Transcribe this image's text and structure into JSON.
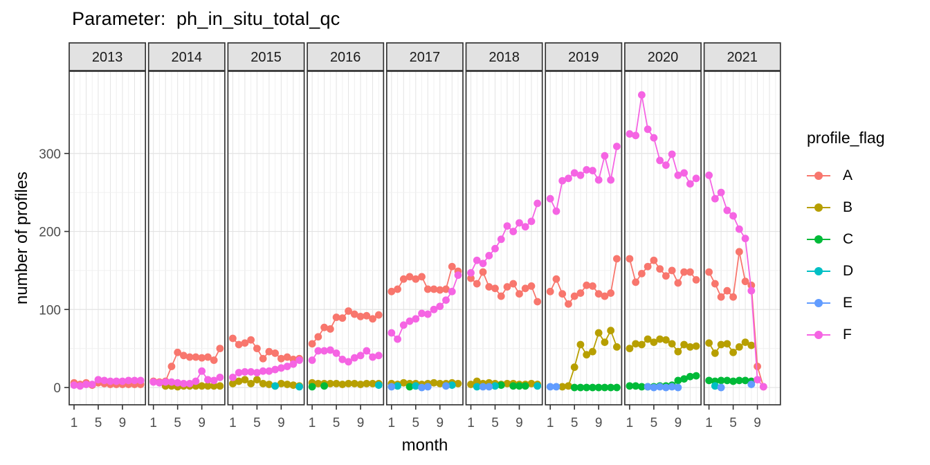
{
  "title": "Parameter:  ph_in_situ_total_qc",
  "axes": {
    "y_title": "number of profiles",
    "x_title": "month",
    "y_ticks": [
      0,
      100,
      200,
      300
    ],
    "x_ticks": [
      1,
      5,
      9
    ]
  },
  "legend": {
    "title": "profile_flag",
    "entries": [
      {
        "label": "A",
        "color": "#F8766D"
      },
      {
        "label": "B",
        "color": "#B79F00"
      },
      {
        "label": "C",
        "color": "#00BA38"
      },
      {
        "label": "D",
        "color": "#00BFC4"
      },
      {
        "label": "E",
        "color": "#619CFF"
      },
      {
        "label": "F",
        "color": "#F564E3"
      }
    ]
  },
  "chart_data": {
    "type": "line",
    "facet_by": "year",
    "x_unit": "month",
    "x_range": [
      1,
      12
    ],
    "ylim": [
      -22,
      404
    ],
    "grid": "on",
    "legend_position": "right",
    "series_order": [
      "A",
      "B",
      "C",
      "D",
      "E",
      "F"
    ],
    "series_colors": {
      "A": "#F8766D",
      "B": "#B79F00",
      "C": "#00BA38",
      "D": "#00BFC4",
      "E": "#619CFF",
      "F": "#F564E3"
    },
    "facets": [
      {
        "year": "2013",
        "series": {
          "A": [
            6,
            4,
            6,
            3,
            6,
            5,
            4,
            4,
            4,
            4,
            4,
            4
          ],
          "F": [
            3,
            2,
            4,
            4,
            10,
            9,
            8,
            8,
            8,
            9,
            9,
            9
          ]
        }
      },
      {
        "year": "2014",
        "series": {
          "A": [
            8,
            7,
            8,
            27,
            45,
            41,
            39,
            39,
            38,
            39,
            35,
            50
          ],
          "B": [
            null,
            null,
            2,
            2,
            1,
            2,
            2,
            2,
            2,
            2,
            2,
            2
          ],
          "F": [
            7,
            6,
            7,
            7,
            6,
            5,
            5,
            8,
            21,
            10,
            9,
            13
          ]
        }
      },
      {
        "year": "2015",
        "series": {
          "A": [
            63,
            55,
            57,
            61,
            50,
            37,
            46,
            44,
            37,
            39,
            36,
            37
          ],
          "B": [
            5,
            8,
            10,
            5,
            10,
            5,
            4,
            2,
            5,
            4,
            3,
            2
          ],
          "D": [
            null,
            null,
            null,
            null,
            null,
            null,
            null,
            2,
            null,
            null,
            null,
            1
          ],
          "F": [
            13,
            19,
            20,
            20,
            19,
            21,
            21,
            23,
            25,
            27,
            30,
            35
          ]
        }
      },
      {
        "year": "2016",
        "series": {
          "A": [
            56,
            65,
            77,
            75,
            90,
            89,
            98,
            94,
            91,
            92,
            88,
            93
          ],
          "B": [
            6,
            5,
            5,
            5,
            5,
            4,
            5,
            5,
            4,
            5,
            5,
            5
          ],
          "C": [
            1,
            null,
            2,
            null,
            null,
            null,
            null,
            null,
            null,
            null,
            null,
            null
          ],
          "D": [
            null,
            null,
            null,
            null,
            null,
            null,
            null,
            null,
            null,
            null,
            null,
            3
          ],
          "F": [
            35,
            47,
            47,
            48,
            44,
            36,
            33,
            38,
            41,
            47,
            39,
            41
          ]
        }
      },
      {
        "year": "2017",
        "series": {
          "A": [
            123,
            126,
            139,
            142,
            139,
            142,
            126,
            126,
            125,
            126,
            155,
            149
          ],
          "B": [
            5,
            4,
            6,
            5,
            5,
            4,
            5,
            6,
            5,
            5,
            6,
            5
          ],
          "C": [
            null,
            null,
            null,
            1,
            null,
            null,
            null,
            null,
            null,
            null,
            null,
            null
          ],
          "D": [
            null,
            2,
            null,
            null,
            2,
            null,
            null,
            null,
            null,
            null,
            3,
            null
          ],
          "E": [
            1,
            null,
            null,
            null,
            null,
            0,
            1,
            null,
            null,
            2,
            null,
            null
          ],
          "F": [
            70,
            62,
            80,
            85,
            88,
            95,
            94,
            100,
            104,
            112,
            123,
            144
          ]
        }
      },
      {
        "year": "2018",
        "series": {
          "A": [
            140,
            133,
            148,
            129,
            127,
            117,
            129,
            133,
            120,
            127,
            130,
            110
          ],
          "B": [
            4,
            8,
            5,
            6,
            5,
            4,
            5,
            5,
            4,
            4,
            5,
            4
          ],
          "C": [
            null,
            null,
            null,
            null,
            null,
            3,
            null,
            2,
            2,
            2,
            null,
            null
          ],
          "D": [
            null,
            1,
            null,
            null,
            2,
            null,
            null,
            null,
            null,
            null,
            null,
            2
          ],
          "E": [
            null,
            null,
            1,
            1,
            null,
            null,
            null,
            null,
            null,
            null,
            null,
            null
          ],
          "F": [
            147,
            163,
            159,
            169,
            178,
            190,
            207,
            200,
            211,
            206,
            213,
            236
          ]
        }
      },
      {
        "year": "2019",
        "series": {
          "A": [
            123,
            139,
            120,
            107,
            117,
            121,
            131,
            130,
            120,
            117,
            121,
            165
          ],
          "B": [
            null,
            null,
            1,
            2,
            26,
            55,
            42,
            46,
            70,
            58,
            73,
            52
          ],
          "C": [
            null,
            null,
            null,
            null,
            0,
            0,
            0,
            0,
            0,
            0,
            0,
            0
          ],
          "E": [
            1,
            1,
            null,
            null,
            null,
            null,
            null,
            null,
            null,
            null,
            null,
            null
          ],
          "F": [
            242,
            226,
            265,
            268,
            275,
            272,
            279,
            278,
            266,
            297,
            266,
            309
          ]
        }
      },
      {
        "year": "2020",
        "series": {
          "A": [
            165,
            135,
            146,
            155,
            163,
            152,
            143,
            150,
            134,
            148,
            148,
            138
          ],
          "B": [
            50,
            56,
            55,
            62,
            58,
            62,
            61,
            56,
            46,
            55,
            52,
            53
          ],
          "C": [
            2,
            2,
            1,
            1,
            1,
            2,
            2,
            3,
            9,
            11,
            14,
            15
          ],
          "E": [
            null,
            null,
            null,
            1,
            0,
            1,
            0,
            1,
            0,
            null,
            null,
            null
          ],
          "F": [
            325,
            323,
            375,
            331,
            320,
            291,
            285,
            299,
            272,
            275,
            261,
            268
          ]
        }
      },
      {
        "year": "2021",
        "series": {
          "A": [
            148,
            133,
            116,
            124,
            116,
            174,
            136,
            131,
            27,
            1,
            null,
            null
          ],
          "B": [
            57,
            44,
            55,
            56,
            45,
            52,
            58,
            54,
            null,
            null,
            null,
            null
          ],
          "C": [
            9,
            8,
            9,
            9,
            8,
            9,
            9,
            8,
            null,
            null,
            null,
            null
          ],
          "D": [
            null,
            2,
            null,
            null,
            null,
            null,
            null,
            null,
            null,
            null,
            null,
            null
          ],
          "E": [
            null,
            null,
            0,
            null,
            null,
            null,
            null,
            4,
            null,
            null,
            null,
            null
          ],
          "F": [
            272,
            242,
            250,
            227,
            220,
            203,
            191,
            124,
            10,
            1,
            null,
            null
          ]
        }
      }
    ],
    "style": {
      "strip_fill": "#E2E2E2",
      "strip_border": "#333333",
      "panel_fill": "#FFFFFF",
      "panel_border": "#333333",
      "grid_major": "#E3E3E3",
      "grid_minor": "#F0F0F0",
      "tick_label_color": "#4D4D4D"
    }
  }
}
